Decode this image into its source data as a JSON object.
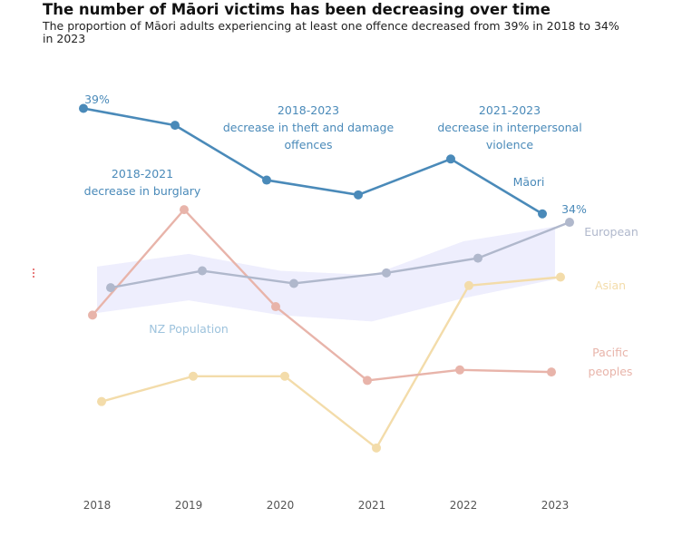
{
  "title": "The number of Māori victims has been decreasing over time",
  "subtitle": "The proportion of Māori adults experiencing at least one offence decreased from 39% in 2018 to 34% in 2023",
  "colors": {
    "maori": "#4a8ab9",
    "european": "#b0b8cc",
    "asian": "#f3dcaa",
    "pacific": "#e8b4aa",
    "band": "#eeeefd",
    "nz_label": "#9ec3dd",
    "tick": "#555555"
  },
  "annotations": {
    "maori_start_value": "39%",
    "maori_end_value": "34%",
    "theft": [
      "2018-2023",
      "decrease in theft and damage",
      "offences"
    ],
    "burglary": [
      "2018-2021",
      "decrease in burglary"
    ],
    "interpersonal": [
      "2021-2023",
      "decrease in interpersonal",
      "violence"
    ],
    "nz_population": "NZ Population"
  },
  "chart_data": {
    "type": "line",
    "x": [
      "2018",
      "2019",
      "2020",
      "2021",
      "2022",
      "2023"
    ],
    "series": [
      {
        "name": "Māori",
        "values": [
          39.0,
          38.2,
          35.6,
          34.9,
          36.6,
          34.0
        ]
      },
      {
        "name": "European",
        "values": [
          30.5,
          31.3,
          30.7,
          31.2,
          31.9,
          33.6
        ]
      },
      {
        "name": "Asian",
        "values": [
          25.1,
          26.3,
          26.3,
          22.9,
          30.6,
          31.0
        ]
      },
      {
        "name": "Pacific peoples",
        "values": [
          29.2,
          34.2,
          29.6,
          26.1,
          26.6,
          26.5
        ]
      }
    ],
    "band": {
      "name": "NZ Population",
      "x": [
        "2018",
        "2019",
        "2020",
        "2021",
        "2022",
        "2023"
      ],
      "upper": [
        31.5,
        32.1,
        31.3,
        31.1,
        32.7,
        33.4
      ],
      "lower": [
        29.3,
        29.9,
        29.2,
        28.9,
        30.0,
        30.9
      ]
    },
    "ylim": [
      21,
      41
    ],
    "grid": false,
    "legend": "direct labels"
  }
}
